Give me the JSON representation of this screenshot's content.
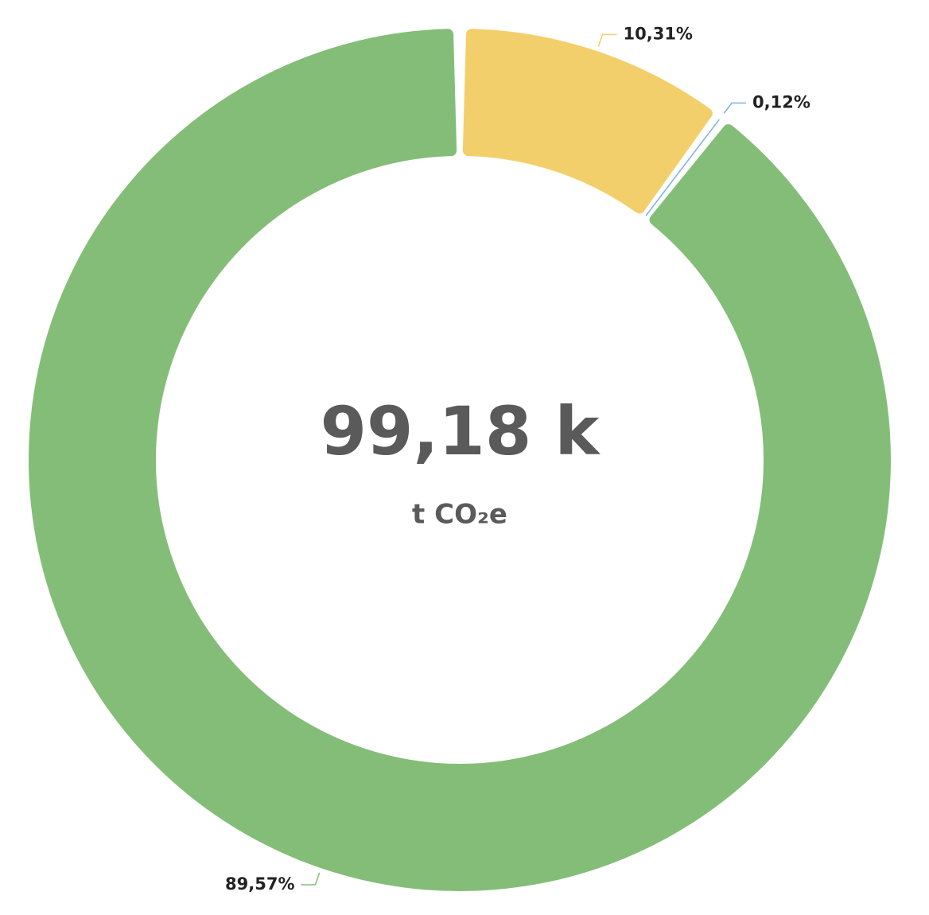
{
  "chart_data": {
    "type": "donut",
    "center_value": "99,18 k",
    "center_unit": "t CO₂e",
    "values": [
      10.31,
      0.12,
      89.57
    ],
    "value_labels": [
      "10,31%",
      "0,12%",
      "89,57%"
    ],
    "colors": [
      "#f3cf6b",
      "#7fb0e8",
      "#84bd78"
    ]
  }
}
